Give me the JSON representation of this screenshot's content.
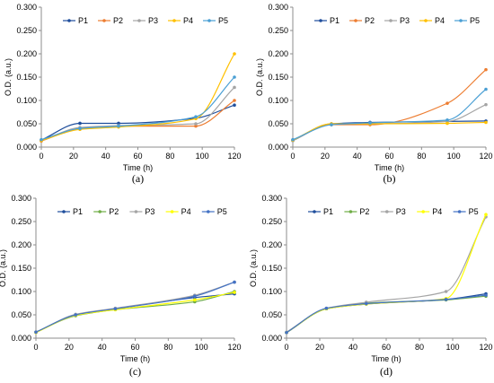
{
  "chart_data": [
    {
      "type": "line",
      "caption": "(a)",
      "xlabel": "Time (h)",
      "ylabel": "O.D. (a.u.)",
      "xlim": [
        0,
        120
      ],
      "ylim": [
        0,
        0.3
      ],
      "xticks": [
        "0",
        "20",
        "40",
        "60",
        "80",
        "100",
        "120"
      ],
      "yticks": [
        "0.000",
        "0.050",
        "0.100",
        "0.150",
        "0.200",
        "0.250",
        "0.300"
      ],
      "legend_position": "top",
      "x": [
        0,
        24,
        48,
        96,
        120
      ],
      "series": [
        {
          "name": "P1",
          "color": "#1f4e9c",
          "values": [
            0.015,
            0.051,
            0.051,
            0.062,
            0.09
          ]
        },
        {
          "name": "P2",
          "color": "#ed7d31",
          "values": [
            0.013,
            0.04,
            0.045,
            0.045,
            0.1
          ]
        },
        {
          "name": "P3",
          "color": "#a5a5a5",
          "values": [
            0.014,
            0.042,
            0.046,
            0.05,
            0.128
          ]
        },
        {
          "name": "P4",
          "color": "#ffc000",
          "values": [
            0.014,
            0.038,
            0.043,
            0.061,
            0.2
          ]
        },
        {
          "name": "P5",
          "color": "#4a9fd4",
          "values": [
            0.016,
            0.04,
            0.045,
            0.065,
            0.15
          ]
        }
      ]
    },
    {
      "type": "line",
      "caption": "(b)",
      "xlabel": "Time (h)",
      "ylabel": "O.D. (a.u.)",
      "xlim": [
        0,
        120
      ],
      "ylim": [
        0,
        0.3
      ],
      "xticks": [
        "0",
        "20",
        "40",
        "60",
        "80",
        "100",
        "120"
      ],
      "yticks": [
        "0.000",
        "0.050",
        "0.100",
        "0.150",
        "0.200",
        "0.250",
        "0.300"
      ],
      "legend_position": "top",
      "x": [
        0,
        24,
        48,
        96,
        120
      ],
      "series": [
        {
          "name": "P1",
          "color": "#1f4e9c",
          "values": [
            0.014,
            0.05,
            0.053,
            0.055,
            0.056
          ]
        },
        {
          "name": "P2",
          "color": "#ed7d31",
          "values": [
            0.015,
            0.048,
            0.048,
            0.094,
            0.166
          ]
        },
        {
          "name": "P3",
          "color": "#a5a5a5",
          "values": [
            0.014,
            0.05,
            0.05,
            0.055,
            0.091
          ]
        },
        {
          "name": "P4",
          "color": "#ffc000",
          "values": [
            0.015,
            0.05,
            0.05,
            0.051,
            0.053
          ]
        },
        {
          "name": "P5",
          "color": "#4a9fd4",
          "values": [
            0.016,
            0.048,
            0.052,
            0.058,
            0.124
          ]
        }
      ]
    },
    {
      "type": "line",
      "caption": "(c)",
      "xlabel": "Time (h)",
      "ylabel": "O.D. (a.u.)",
      "xlim": [
        0,
        120
      ],
      "ylim": [
        0,
        0.3
      ],
      "xticks": [
        "0",
        "20",
        "40",
        "60",
        "80",
        "100",
        "120"
      ],
      "yticks": [
        "0.000",
        "0.050",
        "0.100",
        "0.150",
        "0.200",
        "0.250",
        "0.300"
      ],
      "legend_position": "top",
      "x": [
        0,
        24,
        48,
        96,
        120
      ],
      "series": [
        {
          "name": "P1",
          "color": "#1f4e9c",
          "values": [
            0.013,
            0.05,
            0.063,
            0.087,
            0.095
          ]
        },
        {
          "name": "P2",
          "color": "#70ad47",
          "values": [
            0.013,
            0.048,
            0.061,
            0.078,
            0.1
          ]
        },
        {
          "name": "P3",
          "color": "#a5a5a5",
          "values": [
            0.012,
            0.051,
            0.064,
            0.092,
            0.12
          ]
        },
        {
          "name": "P4",
          "color": "#ffff00",
          "values": [
            0.012,
            0.049,
            0.061,
            0.082,
            0.098
          ]
        },
        {
          "name": "P5",
          "color": "#4472c4",
          "values": [
            0.013,
            0.05,
            0.063,
            0.09,
            0.12
          ]
        }
      ]
    },
    {
      "type": "line",
      "caption": "(d)",
      "xlabel": "Time (h)",
      "ylabel": "O.D. (a.u.)",
      "xlim": [
        0,
        120
      ],
      "ylim": [
        0,
        0.3
      ],
      "xticks": [
        "0",
        "20",
        "40",
        "60",
        "80",
        "100",
        "120"
      ],
      "yticks": [
        "0.000",
        "0.050",
        "0.100",
        "0.150",
        "0.200",
        "0.250",
        "0.300"
      ],
      "legend_position": "top",
      "x": [
        0,
        24,
        48,
        96,
        120
      ],
      "series": [
        {
          "name": "P1",
          "color": "#1f4e9c",
          "values": [
            0.012,
            0.063,
            0.073,
            0.083,
            0.095
          ]
        },
        {
          "name": "P2",
          "color": "#70ad47",
          "values": [
            0.012,
            0.063,
            0.075,
            0.082,
            0.09
          ]
        },
        {
          "name": "P3",
          "color": "#a5a5a5",
          "values": [
            0.013,
            0.064,
            0.077,
            0.1,
            0.26
          ]
        },
        {
          "name": "P4",
          "color": "#ffff00",
          "values": [
            0.012,
            0.063,
            0.073,
            0.085,
            0.265
          ]
        },
        {
          "name": "P5",
          "color": "#4472c4",
          "values": [
            0.012,
            0.064,
            0.074,
            0.083,
            0.092
          ]
        }
      ]
    }
  ]
}
